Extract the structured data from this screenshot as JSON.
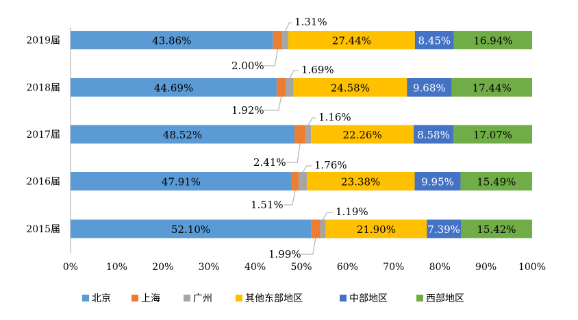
{
  "chart_data": {
    "type": "bar",
    "stacked": true,
    "orientation": "horizontal",
    "title": "",
    "xlabel": "",
    "ylabel": "",
    "xlim": [
      0,
      100
    ],
    "x_ticks": [
      "0%",
      "10%",
      "20%",
      "30%",
      "40%",
      "50%",
      "60%",
      "70%",
      "80%",
      "90%",
      "100%"
    ],
    "grid": false,
    "legend_position": "bottom",
    "categories": [
      "2019届",
      "2018届",
      "2017届",
      "2016届",
      "2015届"
    ],
    "series": [
      {
        "name": "北京",
        "color": "#5B9BD5",
        "values": [
          43.86,
          44.69,
          48.52,
          47.91,
          52.1
        ],
        "labels": [
          "43.86%",
          "44.69%",
          "48.52%",
          "47.91%",
          "52.10%"
        ]
      },
      {
        "name": "上海",
        "color": "#ED7D31",
        "values": [
          2.0,
          1.92,
          2.41,
          1.51,
          1.99
        ],
        "labels": [
          "2.00%",
          "1.92%",
          "2.41%",
          "1.51%",
          "1.99%"
        ]
      },
      {
        "name": "广州",
        "color": "#A5A5A5",
        "values": [
          1.31,
          1.69,
          1.16,
          1.76,
          1.19
        ],
        "labels": [
          "1.31%",
          "1.69%",
          "1.16%",
          "1.76%",
          "1.19%"
        ]
      },
      {
        "name": "其他东部地区",
        "color": "#FFC000",
        "values": [
          27.44,
          24.58,
          22.26,
          23.38,
          21.9
        ],
        "labels": [
          "27.44%",
          "24.58%",
          "22.26%",
          "23.38%",
          "21.90%"
        ]
      },
      {
        "name": "中部地区",
        "color": "#4472C4",
        "values": [
          8.45,
          9.68,
          8.58,
          9.95,
          7.39
        ],
        "labels": [
          "8.45%",
          "9.68%",
          "8.58%",
          "9.95%",
          "7.39%"
        ]
      },
      {
        "name": "西部地区",
        "color": "#70AD47",
        "values": [
          16.94,
          17.44,
          17.07,
          15.49,
          15.42
        ],
        "labels": [
          "16.94%",
          "17.44%",
          "17.07%",
          "15.49%",
          "15.42%"
        ]
      }
    ]
  }
}
